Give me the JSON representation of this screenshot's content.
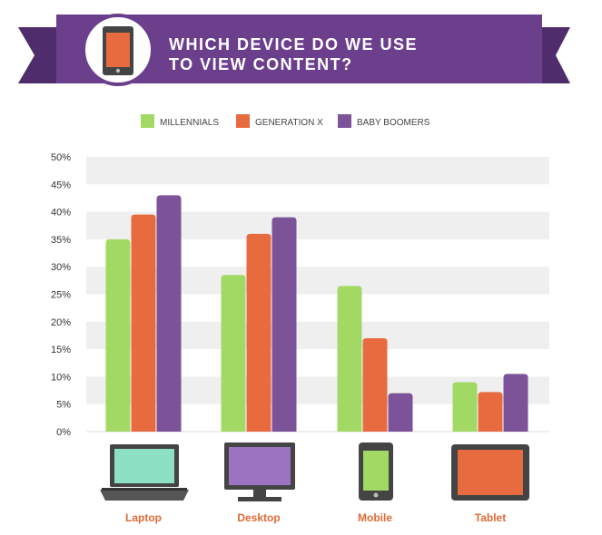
{
  "colors": {
    "millennials": "#a2d964",
    "generation_x": "#e86a3f",
    "baby_boomers": "#7c5299",
    "banner": "#6b3f8c",
    "banner_dark": "#4f2c6b",
    "category_label": "#e06a35",
    "grid_band": "#efefef"
  },
  "chart_data": {
    "type": "bar",
    "title_line1": "WHICH DEVICE DO WE USE",
    "title_line2": "TO VIEW CONTENT?",
    "categories": [
      "Laptop",
      "Desktop",
      "Mobile",
      "Tablet"
    ],
    "category_icons": [
      "laptop-icon",
      "desktop-icon",
      "mobile-icon",
      "tablet-icon"
    ],
    "series": [
      {
        "name": "MILLENNIALS",
        "values": [
          35,
          28.5,
          26.5,
          9
        ]
      },
      {
        "name": "GENERATION X",
        "values": [
          39.5,
          36,
          17,
          7.2
        ]
      },
      {
        "name": "BABY BOOMERS",
        "values": [
          43,
          39,
          7,
          10.5
        ]
      }
    ],
    "ylim": [
      0,
      50
    ],
    "yticks": [
      "0%",
      "5%",
      "10%",
      "15%",
      "20%",
      "25%",
      "30%",
      "35%",
      "40%",
      "45%",
      "50%"
    ],
    "legend_position": "top-center",
    "grid": true
  }
}
